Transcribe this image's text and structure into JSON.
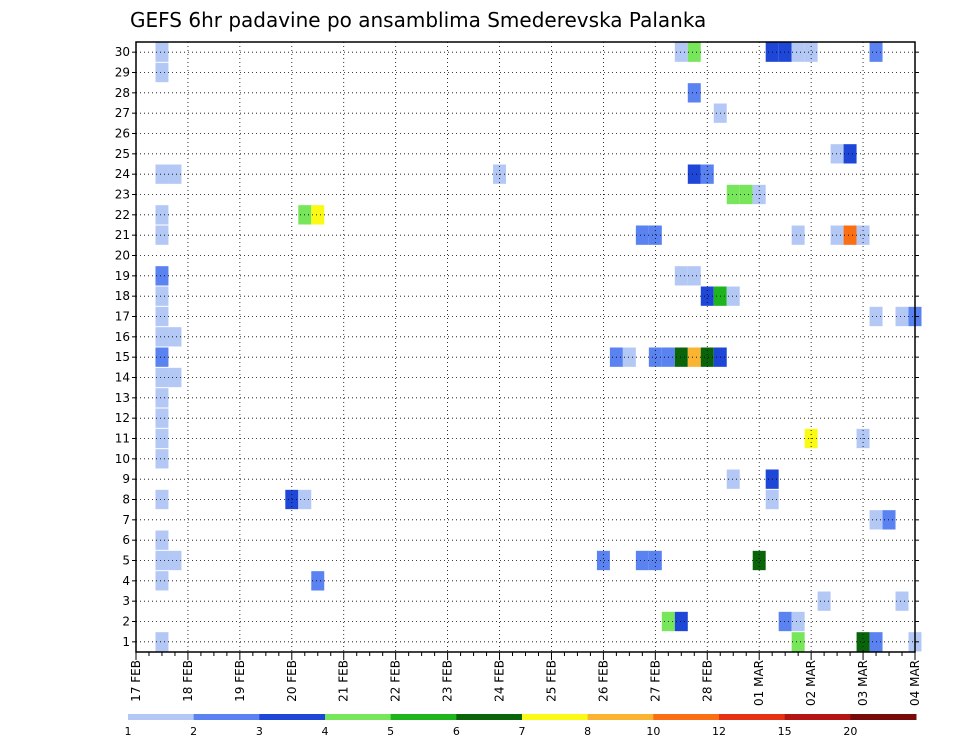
{
  "chart_data": {
    "type": "heatmap",
    "title": "GEFS 6hr padavine po ansamblima Smederevska Palanka",
    "xlabel": "",
    "ylabel": "",
    "x_tick_labels": [
      "17 FEB",
      "18 FEB",
      "19 FEB",
      "20 FEB",
      "21 FEB",
      "22 FEB",
      "23 FEB",
      "24 FEB",
      "25 FEB",
      "26 FEB",
      "27 FEB",
      "28 FEB",
      "01 MAR",
      "02 MAR",
      "03 MAR",
      "04 MAR"
    ],
    "y_tick_labels": [
      "1",
      "2",
      "3",
      "4",
      "5",
      "6",
      "7",
      "8",
      "9",
      "10",
      "11",
      "12",
      "13",
      "14",
      "15",
      "16",
      "17",
      "18",
      "19",
      "20",
      "21",
      "22",
      "23",
      "24",
      "25",
      "26",
      "27",
      "28",
      "29",
      "30"
    ],
    "xlim_steps": [
      0,
      60
    ],
    "ylim": [
      0.5,
      30.5
    ],
    "grid": true,
    "note_x": "x values are 6-hour forecast steps counted from 17 FEB 00h",
    "colorbar": {
      "levels": [
        "1",
        "2",
        "3",
        "4",
        "5",
        "6",
        "7",
        "8",
        "10",
        "12",
        "15",
        "20"
      ],
      "colors": [
        "#b4c8f5",
        "#5a82f0",
        "#1e46d7",
        "#78e65a",
        "#1eb41e",
        "#0a640a",
        "#fafa14",
        "#fab432",
        "#fa6e14",
        "#e63214",
        "#b41414",
        "#780a0a"
      ]
    },
    "cells": [
      {
        "s": [
          2
        ],
        "m": 29,
        "c": 1
      },
      {
        "s": [
          2
        ],
        "m": 30,
        "c": 1
      },
      {
        "s": [
          2,
          3
        ],
        "m": 24,
        "c": 1
      },
      {
        "s": [
          2
        ],
        "m": 22,
        "c": 1
      },
      {
        "s": [
          2
        ],
        "m": 21,
        "c": 1
      },
      {
        "s": [
          2
        ],
        "m": 19,
        "c": 2
      },
      {
        "s": [
          2
        ],
        "m": 18,
        "c": 1
      },
      {
        "s": [
          2
        ],
        "m": 17,
        "c": 1
      },
      {
        "s": [
          2,
          3
        ],
        "m": 16,
        "c": 1
      },
      {
        "s": [
          2
        ],
        "m": 15,
        "c": 2
      },
      {
        "s": [
          2,
          3
        ],
        "m": 14,
        "c": 1
      },
      {
        "s": [
          2
        ],
        "m": 13,
        "c": 1
      },
      {
        "s": [
          2
        ],
        "m": 12,
        "c": 1
      },
      {
        "s": [
          2
        ],
        "m": 11,
        "c": 1
      },
      {
        "s": [
          2
        ],
        "m": 10,
        "c": 1
      },
      {
        "s": [
          2
        ],
        "m": 8,
        "c": 1
      },
      {
        "s": [
          2
        ],
        "m": 6,
        "c": 1
      },
      {
        "s": [
          2,
          3
        ],
        "m": 5,
        "c": 1
      },
      {
        "s": [
          2
        ],
        "m": 4,
        "c": 1
      },
      {
        "s": [
          2
        ],
        "m": 1,
        "c": 1
      },
      {
        "s": [
          13
        ],
        "m": 22,
        "c": 4
      },
      {
        "s": [
          14
        ],
        "m": 22,
        "c": 7
      },
      {
        "s": [
          12
        ],
        "m": 8,
        "c": 3
      },
      {
        "s": [
          13
        ],
        "m": 8,
        "c": 1
      },
      {
        "s": [
          14
        ],
        "m": 4,
        "c": 2
      },
      {
        "s": [
          28
        ],
        "m": 24,
        "c": 1
      },
      {
        "s": [
          36
        ],
        "m": 5,
        "c": 2
      },
      {
        "s": [
          37
        ],
        "m": 15,
        "c": 2
      },
      {
        "s": [
          38
        ],
        "m": 15,
        "c": 1
      },
      {
        "s": [
          39,
          40
        ],
        "m": 21,
        "c": 2
      },
      {
        "s": [
          39,
          40
        ],
        "m": 5,
        "c": 2
      },
      {
        "s": [
          40,
          41
        ],
        "m": 15,
        "c": 2
      },
      {
        "s": [
          42
        ],
        "m": 15,
        "c": 6
      },
      {
        "s": [
          43
        ],
        "m": 15,
        "c": 8
      },
      {
        "s": [
          44
        ],
        "m": 15,
        "c": 6
      },
      {
        "s": [
          45
        ],
        "m": 15,
        "c": 3
      },
      {
        "s": [
          41
        ],
        "m": 2,
        "c": 4
      },
      {
        "s": [
          42
        ],
        "m": 2,
        "c": 3
      },
      {
        "s": [
          42,
          43
        ],
        "m": 19,
        "c": 1
      },
      {
        "s": [
          42
        ],
        "m": 30,
        "c": 1
      },
      {
        "s": [
          43
        ],
        "m": 30,
        "c": 4
      },
      {
        "s": [
          43
        ],
        "m": 28,
        "c": 2
      },
      {
        "s": [
          43
        ],
        "m": 24,
        "c": 3
      },
      {
        "s": [
          44
        ],
        "m": 24,
        "c": 2
      },
      {
        "s": [
          44
        ],
        "m": 18,
        "c": 3
      },
      {
        "s": [
          45
        ],
        "m": 18,
        "c": 5
      },
      {
        "s": [
          46
        ],
        "m": 18,
        "c": 1
      },
      {
        "s": [
          45
        ],
        "m": 27,
        "c": 1
      },
      {
        "s": [
          46,
          47
        ],
        "m": 23,
        "c": 4
      },
      {
        "s": [
          48
        ],
        "m": 23,
        "c": 1
      },
      {
        "s": [
          46
        ],
        "m": 9,
        "c": 1
      },
      {
        "s": [
          48
        ],
        "m": 5,
        "c": 6
      },
      {
        "s": [
          49,
          50
        ],
        "m": 30,
        "c": 3
      },
      {
        "s": [
          51,
          52
        ],
        "m": 30,
        "c": 1
      },
      {
        "s": [
          49
        ],
        "m": 9,
        "c": 3
      },
      {
        "s": [
          49
        ],
        "m": 8,
        "c": 1
      },
      {
        "s": [
          50
        ],
        "m": 2,
        "c": 2
      },
      {
        "s": [
          51
        ],
        "m": 2,
        "c": 1
      },
      {
        "s": [
          51
        ],
        "m": 1,
        "c": 4
      },
      {
        "s": [
          51
        ],
        "m": 21,
        "c": 1
      },
      {
        "s": [
          52
        ],
        "m": 11,
        "c": 7
      },
      {
        "s": [
          53
        ],
        "m": 3,
        "c": 1
      },
      {
        "s": [
          54
        ],
        "m": 25,
        "c": 1
      },
      {
        "s": [
          55
        ],
        "m": 25,
        "c": 3
      },
      {
        "s": [
          54
        ],
        "m": 21,
        "c": 1
      },
      {
        "s": [
          55
        ],
        "m": 21,
        "c": 9
      },
      {
        "s": [
          56
        ],
        "m": 21,
        "c": 1
      },
      {
        "s": [
          56
        ],
        "m": 11,
        "c": 1
      },
      {
        "s": [
          56
        ],
        "m": 1,
        "c": 6
      },
      {
        "s": [
          57
        ],
        "m": 1,
        "c": 2
      },
      {
        "s": [
          57
        ],
        "m": 30,
        "c": 2
      },
      {
        "s": [
          57
        ],
        "m": 17,
        "c": 1
      },
      {
        "s": [
          57
        ],
        "m": 7,
        "c": 1
      },
      {
        "s": [
          58
        ],
        "m": 7,
        "c": 2
      },
      {
        "s": [
          59
        ],
        "m": 3,
        "c": 1
      },
      {
        "s": [
          59
        ],
        "m": 17,
        "c": 1
      },
      {
        "s": [
          60
        ],
        "m": 17,
        "c": 2
      },
      {
        "s": [
          60
        ],
        "m": 1,
        "c": 1
      }
    ]
  }
}
